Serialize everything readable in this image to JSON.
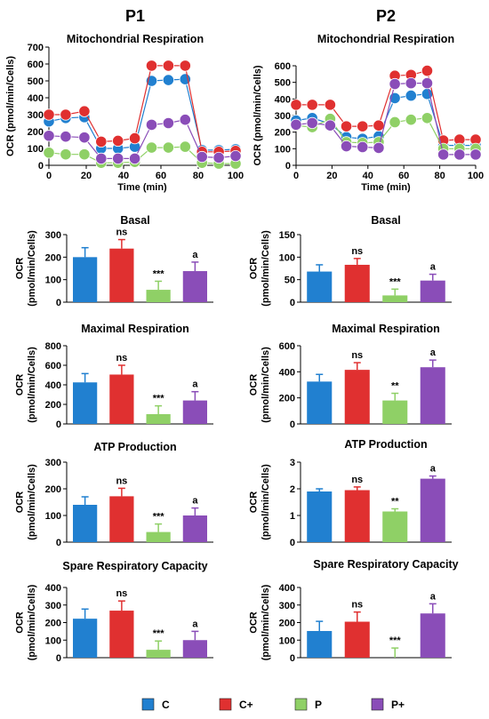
{
  "columns": [
    "P1",
    "P2"
  ],
  "legend": [
    {
      "label": "C",
      "color": "#2180d0"
    },
    {
      "label": "C+",
      "color": "#e03030"
    },
    {
      "label": "P",
      "color": "#8fd066"
    },
    {
      "label": "P+",
      "color": "#8a4db8"
    }
  ],
  "chart_data": [
    {
      "id": "p1-line",
      "type": "line",
      "title": "Mitochondrial Respiration",
      "xlabel": "Time (min)",
      "ylabel": "OCR (pmol/min/Cells)",
      "xlim": [
        0,
        100
      ],
      "ylim": [
        0,
        700
      ],
      "xticks": [
        0,
        20,
        40,
        60,
        80,
        100
      ],
      "yticks": [
        0,
        100,
        200,
        300,
        400,
        500,
        600,
        700
      ],
      "x": [
        0,
        9,
        19,
        28,
        37,
        46,
        55,
        64,
        73,
        82,
        91,
        100
      ],
      "series": [
        {
          "name": "C",
          "values": [
            260,
            280,
            285,
            100,
            100,
            110,
            500,
            505,
            510,
            90,
            90,
            95
          ]
        },
        {
          "name": "C+",
          "values": [
            300,
            300,
            320,
            140,
            145,
            160,
            590,
            590,
            590,
            80,
            80,
            85
          ]
        },
        {
          "name": "P",
          "values": [
            75,
            65,
            65,
            15,
            15,
            20,
            105,
            105,
            110,
            15,
            10,
            10
          ]
        },
        {
          "name": "P+",
          "values": [
            175,
            170,
            165,
            40,
            40,
            40,
            240,
            250,
            270,
            50,
            45,
            55
          ]
        }
      ]
    },
    {
      "id": "p2-line",
      "type": "line",
      "title": "Mitochondrial Respiration",
      "xlabel": "Time (min)",
      "ylabel": "OCR (pmol/min/Cells)",
      "xlim": [
        0,
        100
      ],
      "ylim": [
        0,
        600
      ],
      "xticks": [
        0,
        20,
        40,
        60,
        80,
        100
      ],
      "yticks": [
        0,
        100,
        200,
        300,
        400,
        500,
        600
      ],
      "x": [
        0,
        9,
        19,
        28,
        37,
        46,
        55,
        64,
        73,
        82,
        91,
        100
      ],
      "series": [
        {
          "name": "C",
          "values": [
            270,
            285,
            250,
            170,
            160,
            175,
            405,
            420,
            430,
            120,
            120,
            120
          ]
        },
        {
          "name": "C+",
          "values": [
            365,
            365,
            365,
            235,
            235,
            240,
            540,
            545,
            570,
            150,
            155,
            155
          ]
        },
        {
          "name": "P",
          "values": [
            240,
            230,
            280,
            140,
            135,
            140,
            260,
            275,
            285,
            100,
            100,
            100
          ]
        },
        {
          "name": "P+",
          "values": [
            245,
            255,
            240,
            115,
            110,
            105,
            490,
            495,
            495,
            65,
            65,
            65
          ]
        }
      ]
    },
    {
      "id": "p1-basal",
      "type": "bar",
      "title": "Basal",
      "ylabel": "OCR (pmol/min/Cells)",
      "ylim": [
        0,
        300
      ],
      "yticks": [
        0,
        100,
        200,
        300
      ],
      "categories": [
        "C",
        "C+",
        "P",
        "P+"
      ],
      "values": [
        200,
        238,
        55,
        138
      ],
      "errors": [
        42,
        40,
        38,
        40
      ],
      "annotations": [
        "",
        "ns",
        "***",
        "a"
      ]
    },
    {
      "id": "p2-basal",
      "type": "bar",
      "title": "Basal",
      "ylabel": "OCR (pmol/min/Cells)",
      "ylim": [
        0,
        150
      ],
      "yticks": [
        0,
        50,
        100,
        150
      ],
      "categories": [
        "C",
        "C+",
        "P",
        "P+"
      ],
      "values": [
        68,
        83,
        15,
        48
      ],
      "errors": [
        15,
        14,
        14,
        14
      ],
      "annotations": [
        "",
        "ns",
        "***",
        "a"
      ]
    },
    {
      "id": "p1-maximal",
      "type": "bar",
      "title": "Maximal Respiration",
      "ylabel": "OCR (pmol/min/Cells)",
      "ylim": [
        0,
        800
      ],
      "yticks": [
        0,
        200,
        400,
        600,
        800
      ],
      "categories": [
        "C",
        "C+",
        "P",
        "P+"
      ],
      "values": [
        425,
        505,
        100,
        240
      ],
      "errors": [
        90,
        95,
        85,
        90
      ],
      "annotations": [
        "",
        "ns",
        "***",
        "a"
      ]
    },
    {
      "id": "p2-maximal",
      "type": "bar",
      "title": "Maximal Respiration",
      "ylabel": "OCR (pmol/min/Cells)",
      "ylim": [
        0,
        600
      ],
      "yticks": [
        0,
        200,
        400,
        600
      ],
      "categories": [
        "C",
        "C+",
        "P",
        "P+"
      ],
      "values": [
        325,
        415,
        180,
        435
      ],
      "errors": [
        55,
        55,
        55,
        55
      ],
      "annotations": [
        "",
        "ns",
        "**",
        "a"
      ]
    },
    {
      "id": "p1-atp",
      "type": "bar",
      "title": "ATP Production",
      "ylabel": "OCR (pmol/min/Cells)",
      "ylim": [
        0,
        300
      ],
      "yticks": [
        0,
        100,
        200,
        300
      ],
      "categories": [
        "C",
        "C+",
        "P",
        "P+"
      ],
      "values": [
        140,
        172,
        38,
        100
      ],
      "errors": [
        30,
        30,
        30,
        28
      ],
      "annotations": [
        "",
        "ns",
        "***",
        "a"
      ]
    },
    {
      "id": "p2-atp",
      "type": "bar",
      "title": "ATP Production",
      "ylabel": "OCR (pmol/min/Cells)",
      "ylim": [
        0,
        3
      ],
      "yticks": [
        0,
        1,
        2,
        3
      ],
      "categories": [
        "C",
        "C+",
        "P",
        "P+"
      ],
      "values": [
        1.9,
        1.95,
        1.15,
        2.38
      ],
      "errors": [
        0.1,
        0.12,
        0.1,
        0.1
      ],
      "annotations": [
        "",
        "ns",
        "**",
        "a"
      ]
    },
    {
      "id": "p1-spare",
      "type": "bar",
      "title": "Spare Respiratory Capacity",
      "ylabel": "OCR (pmol/min/Cells)",
      "ylim": [
        0,
        400
      ],
      "yticks": [
        0,
        100,
        200,
        300,
        400
      ],
      "categories": [
        "C",
        "C+",
        "P",
        "P+"
      ],
      "values": [
        222,
        268,
        45,
        100
      ],
      "errors": [
        55,
        55,
        50,
        50
      ],
      "annotations": [
        "",
        "ns",
        "***",
        "a"
      ]
    },
    {
      "id": "p2-spare",
      "type": "bar",
      "title": "Spare Respiratory Capacity",
      "ylabel": "OCR (pmol/min/Cells)",
      "ylim": [
        0,
        400
      ],
      "yticks": [
        0,
        100,
        200,
        300,
        400
      ],
      "categories": [
        "C",
        "C+",
        "P",
        "P+"
      ],
      "values": [
        152,
        205,
        0,
        252
      ],
      "errors": [
        55,
        55,
        55,
        55
      ],
      "annotations": [
        "",
        "ns",
        "***",
        "a"
      ]
    }
  ]
}
